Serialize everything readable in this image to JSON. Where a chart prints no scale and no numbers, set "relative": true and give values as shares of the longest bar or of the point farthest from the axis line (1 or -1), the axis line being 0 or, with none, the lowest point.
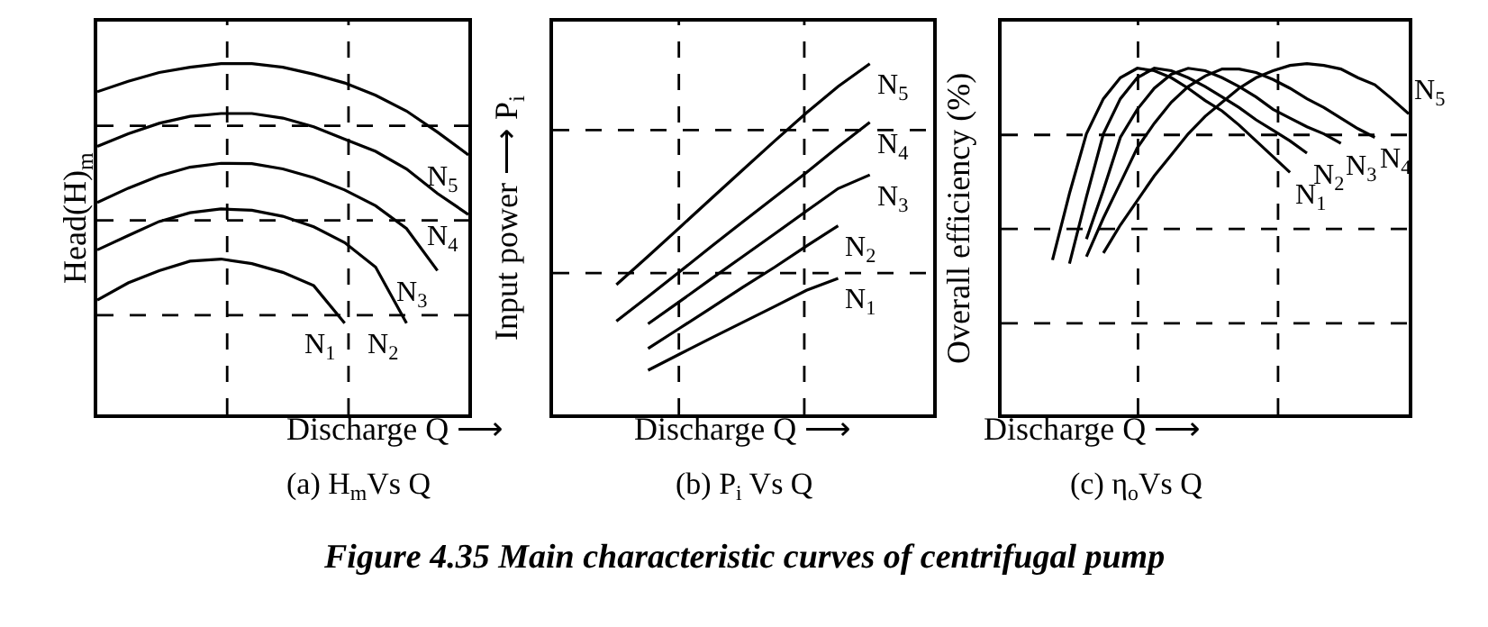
{
  "chart_data": [
    {
      "type": "line",
      "relative": true,
      "subtitle": "(a) H$_{m}$Vs Q",
      "xlabel": "Discharge Q ⟶",
      "ylabel": "Head(H)$_{m}$",
      "marker": "none",
      "line_style": "solid",
      "categories": [
        null,
        null,
        null,
        null,
        null,
        null,
        null,
        null,
        null,
        null,
        null,
        null,
        null
      ],
      "ref_lines": [
        {
          "axis": "y",
          "value": 0.823,
          "line_style": "dashed",
          "color": "#000000"
        },
        {
          "axis": "y",
          "value": 0.553,
          "line_style": "dashed",
          "color": "#000000"
        },
        {
          "axis": "y",
          "value": 0.283,
          "line_style": "dashed",
          "color": "#000000"
        }
      ],
      "series": [
        {
          "name": "N$_{5}$",
          "color": "#000000",
          "values": [
            0.92,
            0.95,
            0.975,
            0.99,
            1.0,
            1.0,
            0.99,
            0.97,
            0.945,
            0.91,
            0.865,
            0.805,
            0.74
          ]
        },
        {
          "name": "N$_{4}$",
          "color": "#000000",
          "values": [
            0.764,
            0.8,
            0.83,
            0.85,
            0.858,
            0.858,
            0.845,
            0.82,
            0.785,
            0.75,
            0.7,
            0.63,
            0.57
          ]
        },
        {
          "name": "N$_{3}$",
          "color": "#000000",
          "values": [
            0.604,
            0.645,
            0.68,
            0.705,
            0.716,
            0.715,
            0.7,
            0.675,
            0.64,
            0.595,
            0.53,
            0.41,
            null
          ]
        },
        {
          "name": "N$_{2}$",
          "color": "#000000",
          "values": [
            0.469,
            0.51,
            0.55,
            0.575,
            0.586,
            0.582,
            0.565,
            0.535,
            0.49,
            0.42,
            0.26,
            null,
            null
          ]
        },
        {
          "name": "N$_{1}$",
          "color": "#000000",
          "values": [
            0.326,
            0.375,
            0.41,
            0.437,
            0.443,
            0.43,
            0.405,
            0.367,
            0.26,
            null,
            null,
            null,
            null
          ]
        }
      ]
    },
    {
      "type": "line",
      "relative": true,
      "subtitle": "(b) P$_{i}$ Vs Q",
      "xlabel": "Discharge Q ⟶",
      "ylabel": "Input power ⟶ P$_{i}$",
      "marker": "none",
      "line_style": "solid",
      "categories": [
        null,
        null,
        null,
        null,
        null,
        null,
        null,
        null,
        null
      ],
      "ref_lines": [
        {
          "axis": "y",
          "value": 0.811,
          "line_style": "dashed",
          "color": "#000000"
        },
        {
          "axis": "y",
          "value": 0.403,
          "line_style": "dashed",
          "color": "#000000"
        }
      ],
      "annotations": [
        "Figure 4.35 Main characteristic curves of centrifugal pump"
      ],
      "series": [
        {
          "name": "N$_{5}$",
          "color": "#000000",
          "values": [
            0.37,
            0.451,
            0.533,
            0.616,
            0.698,
            0.78,
            0.86,
            0.935,
            1.0
          ]
        },
        {
          "name": "N$_{4}$",
          "color": "#000000",
          "values": [
            0.266,
            0.336,
            0.407,
            0.479,
            0.55,
            0.62,
            0.69,
            0.763,
            0.833
          ]
        },
        {
          "name": "N$_{3}$",
          "color": "#000000",
          "values": [
            null,
            0.258,
            0.322,
            0.387,
            0.451,
            0.515,
            0.58,
            0.644,
            0.683
          ]
        },
        {
          "name": "N$_{2}$",
          "color": "#000000",
          "values": [
            null,
            0.188,
            0.246,
            0.304,
            0.363,
            0.42,
            0.48,
            0.538,
            null
          ]
        },
        {
          "name": "N$_{1}$",
          "color": "#000000",
          "values": [
            null,
            0.126,
            0.172,
            0.218,
            0.263,
            0.308,
            0.354,
            0.388,
            null
          ]
        }
      ]
    },
    {
      "type": "line",
      "relative": true,
      "subtitle": "(c) η$_{o}$Vs Q",
      "xlabel": "Discharge Q ⟶",
      "ylabel": "Overall efficiency (%)",
      "marker": "none",
      "line_style": "solid",
      "categories": [
        null,
        null,
        null,
        null,
        null,
        null,
        null,
        null,
        null,
        null,
        null,
        null,
        null,
        null,
        null,
        null,
        null,
        null,
        null,
        null,
        null,
        null,
        null,
        null,
        null
      ],
      "ref_lines": [
        {
          "axis": "y",
          "value": 0.797,
          "line_style": "dashed",
          "color": "#000000"
        },
        {
          "axis": "y",
          "value": 0.529,
          "line_style": "dashed",
          "color": "#000000"
        },
        {
          "axis": "y",
          "value": 0.26,
          "line_style": "dashed",
          "color": "#000000"
        }
      ],
      "series": [
        {
          "name": "N$_{1}$",
          "color": "#000000",
          "values": [
            null,
            null,
            null,
            0.44,
            0.63,
            0.8,
            0.9,
            0.96,
            0.987,
            0.98,
            0.96,
            0.93,
            0.895,
            0.865,
            0.825,
            0.78,
            0.735,
            0.69,
            null,
            null,
            null,
            null,
            null,
            null,
            null
          ]
        },
        {
          "name": "N$_{2}$",
          "color": "#000000",
          "values": [
            null,
            null,
            null,
            null,
            0.43,
            0.62,
            0.8,
            0.9,
            0.96,
            0.987,
            0.98,
            0.96,
            0.935,
            0.905,
            0.875,
            0.84,
            0.81,
            0.78,
            0.745,
            null,
            null,
            null,
            null,
            null,
            null
          ]
        },
        {
          "name": "N$_{3}$",
          "color": "#000000",
          "values": [
            null,
            null,
            null,
            null,
            null,
            0.5,
            0.64,
            0.79,
            0.87,
            0.93,
            0.97,
            0.987,
            0.98,
            0.96,
            0.935,
            0.905,
            0.87,
            0.845,
            0.82,
            0.8,
            0.773,
            null,
            null,
            null,
            null
          ]
        },
        {
          "name": "N$_{4}$",
          "color": "#000000",
          "values": [
            null,
            null,
            null,
            null,
            null,
            0.45,
            0.56,
            0.66,
            0.76,
            0.83,
            0.89,
            0.935,
            0.965,
            0.985,
            0.985,
            0.975,
            0.955,
            0.93,
            0.9,
            0.875,
            0.845,
            0.815,
            0.79,
            null,
            null
          ]
        },
        {
          "name": "N$_{5}$",
          "color": "#000000",
          "values": [
            null,
            null,
            null,
            null,
            null,
            null,
            0.46,
            0.54,
            0.61,
            0.68,
            0.74,
            0.8,
            0.85,
            0.89,
            0.93,
            0.96,
            0.98,
            0.995,
            1.0,
            0.995,
            0.985,
            0.96,
            0.94,
            0.9,
            0.857
          ]
        }
      ]
    }
  ]
}
